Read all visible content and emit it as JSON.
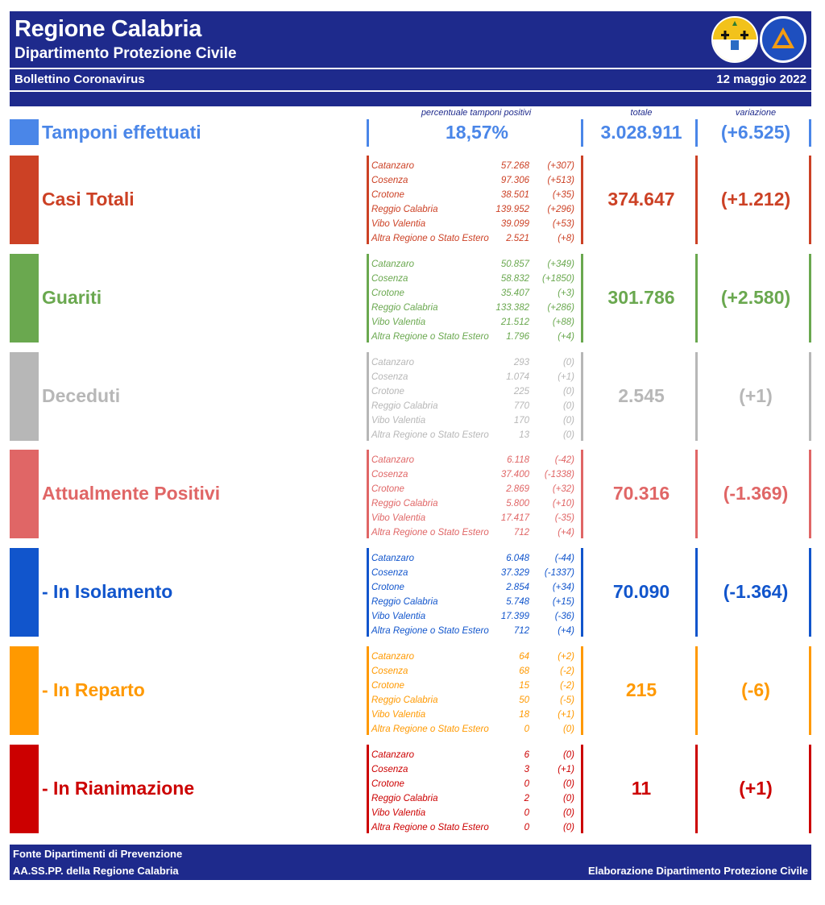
{
  "header": {
    "title": "Regione Calabria",
    "subtitle": "Dipartimento Protezione Civile",
    "bulletin": "Bollettino Coronavirus",
    "date": "12 maggio 2022"
  },
  "columns": {
    "positivity": "percentuale tamponi positivi",
    "total": "totale",
    "change": "variazione"
  },
  "tests": {
    "label": "Tamponi effettuati",
    "positivity": "18,57%",
    "total": "3.028.911",
    "change": "(+6.525)",
    "color": "#4a86e8"
  },
  "sections": [
    {
      "label": "Casi Totali",
      "color": "#cc4125",
      "total": "374.647",
      "change": "(+1.212)",
      "provinces": [
        {
          "name": "Catanzaro",
          "value": "57.268",
          "change": "(+307)"
        },
        {
          "name": "Cosenza",
          "value": "97.306",
          "change": "(+513)"
        },
        {
          "name": "Crotone",
          "value": "38.501",
          "change": "(+35)"
        },
        {
          "name": "Reggio Calabria",
          "value": "139.952",
          "change": "(+296)"
        },
        {
          "name": "Vibo Valentia",
          "value": "39.099",
          "change": "(+53)"
        },
        {
          "name": "Altra Regione o Stato Estero",
          "value": "2.521",
          "change": "(+8)"
        }
      ]
    },
    {
      "label": "Guariti",
      "color": "#6aa84f",
      "total": "301.786",
      "change": "(+2.580)",
      "provinces": [
        {
          "name": "Catanzaro",
          "value": "50.857",
          "change": "(+349)"
        },
        {
          "name": "Cosenza",
          "value": "58.832",
          "change": "(+1850)"
        },
        {
          "name": "Crotone",
          "value": "35.407",
          "change": "(+3)"
        },
        {
          "name": "Reggio Calabria",
          "value": "133.382",
          "change": "(+286)"
        },
        {
          "name": "Vibo Valentia",
          "value": "21.512",
          "change": "(+88)"
        },
        {
          "name": "Altra Regione o Stato Estero",
          "value": "1.796",
          "change": "(+4)"
        }
      ]
    },
    {
      "label": "Deceduti",
      "color": "#b7b7b7",
      "total": "2.545",
      "change": "(+1)",
      "provinces": [
        {
          "name": "Catanzaro",
          "value": "293",
          "change": "(0)"
        },
        {
          "name": "Cosenza",
          "value": "1.074",
          "change": "(+1)"
        },
        {
          "name": "Crotone",
          "value": "225",
          "change": "(0)"
        },
        {
          "name": "Reggio Calabria",
          "value": "770",
          "change": "(0)"
        },
        {
          "name": "Vibo Valentia",
          "value": "170",
          "change": "(0)"
        },
        {
          "name": "Altra Regione o Stato Estero",
          "value": "13",
          "change": "(0)"
        }
      ]
    },
    {
      "label": "Attualmente Positivi",
      "color": "#e06666",
      "total": "70.316",
      "change": "(-1.369)",
      "provinces": [
        {
          "name": "Catanzaro",
          "value": "6.118",
          "change": "(-42)"
        },
        {
          "name": "Cosenza",
          "value": "37.400",
          "change": "(-1338)"
        },
        {
          "name": "Crotone",
          "value": "2.869",
          "change": "(+32)"
        },
        {
          "name": "Reggio Calabria",
          "value": "5.800",
          "change": "(+10)"
        },
        {
          "name": "Vibo Valentia",
          "value": "17.417",
          "change": "(-35)"
        },
        {
          "name": "Altra Regione o Stato Estero",
          "value": "712",
          "change": "(+4)"
        }
      ]
    },
    {
      "label": " - In Isolamento",
      "color": "#1155cc",
      "total": "70.090",
      "change": "(-1.364)",
      "provinces": [
        {
          "name": "Catanzaro",
          "value": "6.048",
          "change": "(-44)"
        },
        {
          "name": "Cosenza",
          "value": "37.329",
          "change": "(-1337)"
        },
        {
          "name": "Crotone",
          "value": "2.854",
          "change": "(+34)"
        },
        {
          "name": "Reggio Calabria",
          "value": "5.748",
          "change": "(+15)"
        },
        {
          "name": "Vibo Valentia",
          "value": "17.399",
          "change": "(-36)"
        },
        {
          "name": "Altra Regione o Stato Estero",
          "value": "712",
          "change": "(+4)"
        }
      ]
    },
    {
      "label": " - In Reparto",
      "color": "#ff9900",
      "total": "215",
      "change": "(-6)",
      "provinces": [
        {
          "name": "Catanzaro",
          "value": "64",
          "change": "(+2)"
        },
        {
          "name": "Cosenza",
          "value": "68",
          "change": "(-2)"
        },
        {
          "name": "Crotone",
          "value": "15",
          "change": "(-2)"
        },
        {
          "name": "Reggio Calabria",
          "value": "50",
          "change": "(-5)"
        },
        {
          "name": "Vibo Valentia",
          "value": "18",
          "change": "(+1)"
        },
        {
          "name": "Altra Regione o Stato Estero",
          "value": "0",
          "change": "(0)"
        }
      ]
    },
    {
      "label": " - In Rianimazione",
      "color": "#cc0000",
      "total": "11",
      "change": "(+1)",
      "provinces": [
        {
          "name": "Catanzaro",
          "value": "6",
          "change": "(0)"
        },
        {
          "name": "Cosenza",
          "value": "3",
          "change": "(+1)"
        },
        {
          "name": "Crotone",
          "value": "0",
          "change": "(0)"
        },
        {
          "name": "Reggio Calabria",
          "value": "2",
          "change": "(0)"
        },
        {
          "name": "Vibo Valentia",
          "value": "0",
          "change": "(0)"
        },
        {
          "name": "Altra Regione o Stato Estero",
          "value": "0",
          "change": "(0)"
        }
      ]
    }
  ],
  "footer": {
    "source_line1": "Fonte Dipartimenti di Prevenzione",
    "source_line2": "AA.SS.PP.  della Regione Calabria",
    "credit": "Elaborazione Dipartimento Protezione Civile"
  }
}
